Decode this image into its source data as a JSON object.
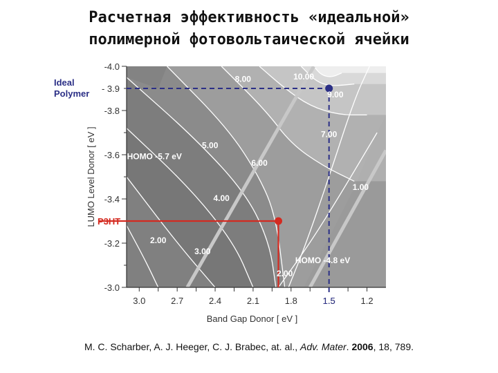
{
  "slide": {
    "title_line1": "Расчетная эффективность «идеальной»",
    "title_line2": "полимерной фотовольтаической ячейки"
  },
  "citation": {
    "authors": "M. C. Scharber, A. J. Heeger, C. J. Brabec, at. al.,",
    "journal": "Adv. Mater",
    "year": "2006",
    "rest": ", 18, 789."
  },
  "chart_data": {
    "type": "heatmap",
    "xlabel": "Band Gap Donor [ eV ]",
    "ylabel": "LUMO Level Donor [ eV ]",
    "xlim": [
      3.1,
      1.05
    ],
    "ylim": [
      -3.0,
      -4.0
    ],
    "x_ticks": [
      "3.0",
      "2.7",
      "2.4",
      "2.1",
      "1.8",
      "1.5",
      "1.2"
    ],
    "y_ticks": [
      "-4.0",
      "-3.8",
      "-3.6",
      "-3.4",
      "-3.2",
      "-3.0"
    ],
    "contours": [
      {
        "label": "1.00",
        "value": 1.0,
        "label_at": [
          1.25,
          -3.44
        ],
        "path": [
          [
            1.9,
            -3.0
          ],
          [
            1.65,
            -3.2
          ],
          [
            1.4,
            -3.43
          ],
          [
            1.12,
            -3.7
          ]
        ]
      },
      {
        "label": "2.00",
        "value": 2.0,
        "label_at": [
          1.85,
          -3.05
        ],
        "path": [
          [
            1.82,
            -3.0
          ],
          [
            1.68,
            -3.2
          ],
          [
            1.5,
            -3.5
          ],
          [
            1.3,
            -3.85
          ],
          [
            1.18,
            -4.0
          ]
        ]
      },
      {
        "label": "2.00",
        "value": 2.0,
        "label_at": [
          2.85,
          -3.2
        ],
        "path": [
          [
            3.1,
            -3.28
          ],
          [
            2.95,
            -3.12
          ],
          [
            2.85,
            -3.0
          ]
        ]
      },
      {
        "label": "3.00",
        "value": 3.0,
        "label_at": [
          2.5,
          -3.15
        ],
        "path": [
          [
            3.1,
            -3.5
          ],
          [
            2.7,
            -3.2
          ],
          [
            2.4,
            -3.0
          ]
        ]
      },
      {
        "label": "4.00",
        "value": 4.0,
        "label_at": [
          2.35,
          -3.39
        ],
        "path": [
          [
            3.1,
            -3.72
          ],
          [
            2.6,
            -3.45
          ],
          [
            2.25,
            -3.2
          ],
          [
            2.1,
            -3.0
          ]
        ]
      },
      {
        "label": "5.00",
        "value": 5.0,
        "label_at": [
          2.44,
          -3.63
        ],
        "path": [
          [
            3.1,
            -3.95
          ],
          [
            2.55,
            -3.67
          ],
          [
            2.15,
            -3.42
          ],
          [
            1.97,
            -3.2
          ],
          [
            1.92,
            -3.0
          ]
        ]
      },
      {
        "label": "6.00",
        "value": 6.0,
        "label_at": [
          2.05,
          -3.55
        ],
        "path": [
          [
            2.78,
            -4.0
          ],
          [
            2.3,
            -3.72
          ],
          [
            2.05,
            -3.5
          ],
          [
            1.92,
            -3.32
          ],
          [
            1.85,
            -3.0
          ]
        ]
      },
      {
        "label": "7.00",
        "value": 7.0,
        "label_at": [
          1.5,
          -3.68
        ],
        "path": [
          [
            2.35,
            -4.0
          ],
          [
            2.0,
            -3.8
          ],
          [
            1.8,
            -3.65
          ],
          [
            1.55,
            -3.55
          ],
          [
            1.3,
            -3.48
          ]
        ]
      },
      {
        "label": "8.00",
        "value": 8.0,
        "label_at": [
          2.18,
          -3.93
        ],
        "path": [
          [
            2.05,
            -4.0
          ],
          [
            1.85,
            -3.9
          ],
          [
            1.65,
            -3.82
          ],
          [
            1.42,
            -3.78
          ],
          [
            1.2,
            -3.78
          ]
        ]
      },
      {
        "label": "9.00",
        "value": 9.0,
        "label_at": [
          1.45,
          -3.86
        ],
        "path": [
          [
            1.72,
            -4.0
          ],
          [
            1.6,
            -3.93
          ],
          [
            1.48,
            -3.91
          ],
          [
            1.3,
            -3.92
          ]
        ]
      },
      {
        "label": "10.00",
        "value": 10.0,
        "label_at": [
          1.7,
          -3.94
        ],
        "path": [
          [
            1.62,
            -4.0
          ],
          [
            1.56,
            -3.96
          ],
          [
            1.48,
            -3.95
          ],
          [
            1.4,
            -3.97
          ]
        ]
      }
    ],
    "homo_lines": [
      {
        "label": "HOMO -5.7 eV",
        "homo": -5.7,
        "label_at": [
          2.88,
          -3.58
        ]
      },
      {
        "label": "HOMO -4.8 eV",
        "homo": -4.8,
        "label_at": [
          1.55,
          -3.11
        ]
      }
    ],
    "markers": [
      {
        "label": "Ideal Polymer",
        "x": 1.5,
        "y": -3.9,
        "color": "#2b2f86",
        "y_tick_label": "- 3.9",
        "x_tick_label": "1.5"
      },
      {
        "label": "P3HT",
        "x": 1.9,
        "y": -3.3,
        "color": "#d42a20"
      }
    ],
    "colors": {
      "highest": "#ffffff",
      "high": "#d9d9d9",
      "mid": "#808080",
      "low": "#404040",
      "region_dark": "#222222",
      "ideal": "#2b2f86",
      "p3ht": "#d42a20"
    },
    "grid": false
  }
}
